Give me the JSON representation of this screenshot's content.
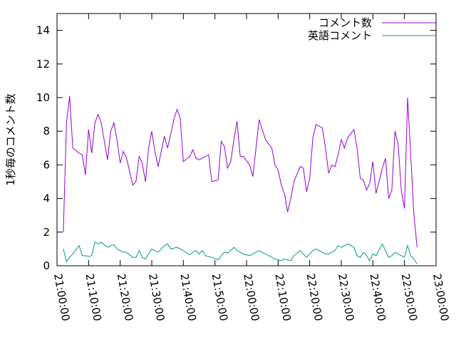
{
  "chart_data": {
    "type": "line",
    "y_label": "1秒毎のコメント数",
    "x": [
      "21:02:00",
      "21:03:00",
      "21:04:00",
      "21:05:00",
      "21:07:00",
      "21:08:00",
      "21:09:00",
      "21:10:00",
      "21:11:00",
      "21:12:00",
      "21:13:00",
      "21:14:00",
      "21:16:00",
      "21:17:00",
      "21:18:00",
      "21:19:00",
      "21:20:00",
      "21:21:00",
      "21:22:00",
      "21:24:00",
      "21:25:00",
      "21:26:00",
      "21:27:00",
      "21:28:00",
      "21:29:00",
      "21:30:00",
      "21:31:00",
      "21:32:00",
      "21:34:00",
      "21:35:00",
      "21:36:00",
      "21:37:00",
      "21:38:00",
      "21:39:00",
      "21:40:00",
      "21:42:00",
      "21:43:00",
      "21:44:00",
      "21:45:00",
      "21:46:00",
      "21:47:00",
      "21:48:00",
      "21:49:00",
      "21:51:00",
      "21:52:00",
      "21:53:00",
      "21:54:00",
      "21:55:00",
      "21:56:00",
      "21:57:00",
      "21:58:00",
      "21:59:00",
      "22:01:00",
      "22:02:00",
      "22:03:00",
      "22:04:00",
      "22:05:00",
      "22:06:00",
      "22:08:00",
      "22:09:00",
      "22:10:00",
      "22:11:00",
      "22:12:00",
      "22:13:00",
      "22:14:00",
      "22:15:00",
      "22:17:00",
      "22:18:00",
      "22:19:00",
      "22:20:00",
      "22:21:00",
      "22:22:00",
      "22:24:00",
      "22:25:00",
      "22:26:00",
      "22:27:00",
      "22:28:00",
      "22:29:00",
      "22:30:00",
      "22:31:00",
      "22:32:00",
      "22:34:00",
      "22:35:00",
      "22:36:00",
      "22:37:00",
      "22:38:00",
      "22:39:00",
      "22:40:00",
      "22:41:00",
      "22:43:00",
      "22:44:00",
      "22:45:00",
      "22:46:00",
      "22:47:00",
      "22:48:00",
      "22:49:00",
      "22:50:00",
      "22:51:00",
      "22:52:00",
      "22:53:00",
      "22:54:00"
    ],
    "series": [
      {
        "name": "コメント数",
        "color": "#9400d3",
        "values": [
          2.0,
          8.5,
          10.1,
          7.0,
          6.7,
          6.6,
          5.4,
          8.1,
          6.7,
          8.5,
          9.0,
          8.5,
          6.3,
          8.0,
          8.5,
          7.5,
          6.1,
          6.8,
          6.4,
          4.8,
          5.0,
          6.5,
          6.1,
          5.0,
          7.0,
          8.0,
          6.8,
          5.9,
          7.7,
          7.0,
          7.8,
          8.7,
          9.3,
          8.8,
          6.2,
          6.5,
          6.9,
          6.4,
          6.3,
          6.4,
          6.5,
          6.6,
          5.0,
          5.1,
          7.4,
          7.1,
          5.8,
          6.2,
          7.5,
          8.6,
          6.5,
          6.5,
          6.0,
          5.3,
          7.0,
          8.7,
          8.1,
          7.5,
          7.0,
          6.0,
          5.7,
          4.8,
          4.3,
          3.2,
          4.0,
          5.0,
          5.9,
          5.8,
          4.4,
          5.2,
          7.6,
          8.4,
          8.2,
          7.0,
          5.5,
          6.0,
          5.9,
          6.6,
          7.5,
          7.0,
          7.6,
          8.1,
          7.0,
          5.2,
          5.1,
          4.5,
          4.9,
          6.2,
          4.3,
          5.8,
          6.4,
          4.0,
          4.5,
          8.0,
          7.2,
          4.5,
          3.4,
          10.0,
          6.5,
          3.0,
          1.1
        ]
      },
      {
        "name": "英語コメント",
        "color": "#009e73",
        "values": [
          1.0,
          0.25,
          0.5,
          0.7,
          1.2,
          0.6,
          0.6,
          0.55,
          0.6,
          1.4,
          1.3,
          1.4,
          1.1,
          1.2,
          1.25,
          1.0,
          0.9,
          0.8,
          0.8,
          0.5,
          0.5,
          0.9,
          0.5,
          0.4,
          0.7,
          1.0,
          0.9,
          0.8,
          1.2,
          1.3,
          1.0,
          1.05,
          1.1,
          1.0,
          0.9,
          0.65,
          0.8,
          0.9,
          0.7,
          0.9,
          0.6,
          0.55,
          0.5,
          0.35,
          0.6,
          0.8,
          0.75,
          0.9,
          1.1,
          0.9,
          0.8,
          0.7,
          0.6,
          0.7,
          0.8,
          0.9,
          0.8,
          0.7,
          0.5,
          0.4,
          0.35,
          0.3,
          0.4,
          0.35,
          0.3,
          0.6,
          0.9,
          0.7,
          0.5,
          0.7,
          0.9,
          1.0,
          0.8,
          0.7,
          0.7,
          0.8,
          0.9,
          1.2,
          1.1,
          1.2,
          1.3,
          1.1,
          0.6,
          0.5,
          0.8,
          0.6,
          0.3,
          0.7,
          0.6,
          1.3,
          0.9,
          0.5,
          0.6,
          0.8,
          0.7,
          0.6,
          0.5,
          1.2,
          0.6,
          0.4,
          0.1
        ]
      }
    ],
    "xlim": [
      "21:00:00",
      "23:00:00"
    ],
    "xticks": [
      "21:00:00",
      "21:10:00",
      "21:20:00",
      "21:30:00",
      "21:40:00",
      "21:50:00",
      "22:00:00",
      "22:10:00",
      "22:20:00",
      "22:30:00",
      "22:40:00",
      "22:50:00",
      "23:00:00"
    ],
    "ylim": [
      0,
      15
    ],
    "yticks": [
      0,
      2,
      4,
      6,
      8,
      10,
      12,
      14
    ],
    "legend": "top-right"
  }
}
